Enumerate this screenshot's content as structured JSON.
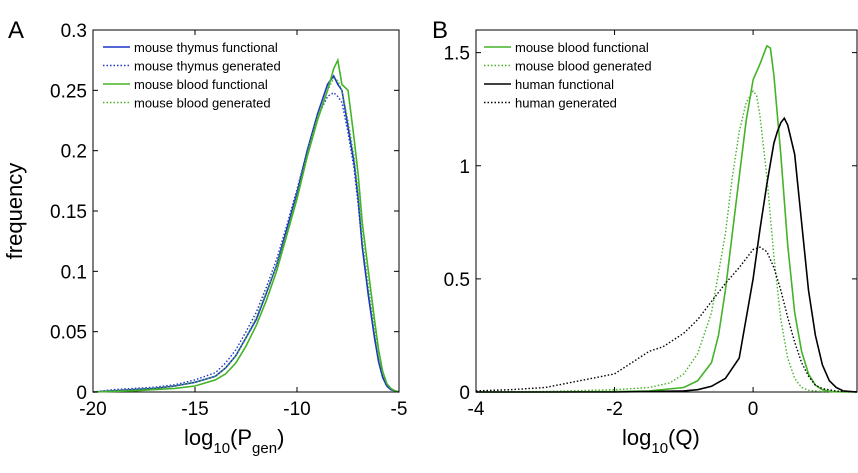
{
  "chart_data": [
    {
      "panel": "A",
      "type": "line",
      "xlabel_main": "log",
      "xlabel_sub": "10",
      "xlabel_arg_open": "(P",
      "xlabel_arg_sub": "gen",
      "xlabel_arg_close": ")",
      "ylabel": "frequency",
      "xlim": [
        -20,
        -5
      ],
      "ylim": [
        0,
        0.3
      ],
      "xticks": [
        -20,
        -15,
        -10,
        -5
      ],
      "xtick_labels": [
        "-20",
        "-15",
        "-10",
        "-5"
      ],
      "yticks": [
        0,
        0.05,
        0.1,
        0.15,
        0.2,
        0.25,
        0.3
      ],
      "ytick_labels": [
        "0",
        "0.05",
        "0.1",
        "0.15",
        "0.2",
        "0.25",
        "0.3"
      ],
      "grid": false,
      "legend_position": "top-left",
      "series": [
        {
          "name": "mouse thymus functional",
          "color": "#1f35c8",
          "dash": "solid",
          "x": [
            -20,
            -19,
            -18,
            -17,
            -16,
            -15,
            -14,
            -13.5,
            -13,
            -12.5,
            -12,
            -11.5,
            -11,
            -10.5,
            -10,
            -9.5,
            -9,
            -8.5,
            -8.2,
            -8,
            -7.8,
            -7.5,
            -7.2,
            -7,
            -6.8,
            -6.5,
            -6.2,
            -6,
            -5.8,
            -5.6,
            -5.4,
            -5.2,
            -5
          ],
          "y": [
            0,
            0.001,
            0.002,
            0.003,
            0.005,
            0.008,
            0.013,
            0.02,
            0.03,
            0.045,
            0.06,
            0.082,
            0.105,
            0.135,
            0.165,
            0.2,
            0.23,
            0.255,
            0.262,
            0.255,
            0.25,
            0.22,
            0.19,
            0.16,
            0.12,
            0.08,
            0.045,
            0.025,
            0.012,
            0.005,
            0.002,
            0.001,
            0
          ]
        },
        {
          "name": "mouse thymus generated",
          "color": "#1f35c8",
          "dash": "dotted",
          "x": [
            -20,
            -19,
            -18,
            -17,
            -16,
            -15,
            -14,
            -13.5,
            -13,
            -12.5,
            -12,
            -11.5,
            -11,
            -10.5,
            -10,
            -9.5,
            -9,
            -8.5,
            -8.2,
            -8,
            -7.8,
            -7.5,
            -7.2,
            -7,
            -6.8,
            -6.5,
            -6.2,
            -6,
            -5.8,
            -5.6,
            -5.4,
            -5.2,
            -5
          ],
          "y": [
            0,
            0.002,
            0.003,
            0.004,
            0.006,
            0.01,
            0.016,
            0.024,
            0.035,
            0.05,
            0.066,
            0.087,
            0.11,
            0.138,
            0.168,
            0.2,
            0.228,
            0.245,
            0.248,
            0.245,
            0.24,
            0.215,
            0.185,
            0.155,
            0.12,
            0.08,
            0.046,
            0.026,
            0.013,
            0.006,
            0.002,
            0.001,
            0
          ]
        },
        {
          "name": "mouse blood functional",
          "color": "#44b327",
          "dash": "solid",
          "x": [
            -20,
            -19,
            -18,
            -17,
            -16,
            -15,
            -14,
            -13.5,
            -13,
            -12.5,
            -12,
            -11.5,
            -11,
            -10.5,
            -10,
            -9.5,
            -9,
            -8.5,
            -8.2,
            -8,
            -7.8,
            -7.5,
            -7.2,
            -7,
            -6.8,
            -6.5,
            -6.2,
            -6,
            -5.8,
            -5.6,
            -5.4,
            -5.2,
            -5
          ],
          "y": [
            0,
            0.0005,
            0.001,
            0.002,
            0.003,
            0.005,
            0.01,
            0.015,
            0.024,
            0.038,
            0.055,
            0.076,
            0.1,
            0.13,
            0.16,
            0.195,
            0.225,
            0.25,
            0.268,
            0.275,
            0.255,
            0.25,
            0.21,
            0.18,
            0.14,
            0.1,
            0.06,
            0.035,
            0.017,
            0.007,
            0.003,
            0.001,
            0
          ]
        },
        {
          "name": "mouse blood generated",
          "color": "#44b327",
          "dash": "dotted",
          "x": [
            -20,
            -19,
            -18,
            -17,
            -16,
            -15,
            -14,
            -13.5,
            -13,
            -12.5,
            -12,
            -11.5,
            -11,
            -10.5,
            -10,
            -9.5,
            -9,
            -8.5,
            -8.2,
            -8,
            -7.8,
            -7.5,
            -7.2,
            -7,
            -6.8,
            -6.5,
            -6.2,
            -6,
            -5.8,
            -5.6,
            -5.4,
            -5.2,
            -5
          ],
          "y": [
            0,
            0.001,
            0.002,
            0.003,
            0.005,
            0.008,
            0.013,
            0.02,
            0.03,
            0.045,
            0.062,
            0.083,
            0.105,
            0.132,
            0.163,
            0.198,
            0.228,
            0.25,
            0.26,
            0.258,
            0.25,
            0.225,
            0.195,
            0.165,
            0.128,
            0.088,
            0.052,
            0.03,
            0.015,
            0.007,
            0.003,
            0.001,
            0
          ]
        }
      ]
    },
    {
      "panel": "B",
      "type": "line",
      "xlabel_main": "log",
      "xlabel_sub": "10",
      "xlabel_arg_open": "(Q)",
      "xlabel_arg_sub": "",
      "xlabel_arg_close": "",
      "ylabel": "",
      "xlim": [
        -4,
        1.5
      ],
      "ylim": [
        0,
        1.6
      ],
      "xticks": [
        -4,
        -2,
        0
      ],
      "xtick_labels": [
        "-4",
        "-2",
        "0"
      ],
      "yticks": [
        0,
        0.5,
        1,
        1.5
      ],
      "ytick_labels": [
        "0",
        "0.5",
        "1",
        "1.5"
      ],
      "grid": false,
      "legend_position": "top-left",
      "series": [
        {
          "name": "mouse blood functional",
          "color": "#44b327",
          "dash": "solid",
          "x": [
            -4,
            -3,
            -2,
            -1.5,
            -1,
            -0.8,
            -0.6,
            -0.5,
            -0.4,
            -0.3,
            -0.2,
            -0.1,
            0,
            0.1,
            0.2,
            0.25,
            0.3,
            0.4,
            0.5,
            0.6,
            0.7,
            0.8,
            0.9,
            1.0,
            1.1,
            1.2,
            1.5
          ],
          "y": [
            0,
            0,
            0.002,
            0.005,
            0.02,
            0.05,
            0.13,
            0.25,
            0.45,
            0.7,
            0.95,
            1.2,
            1.38,
            1.45,
            1.53,
            1.52,
            1.4,
            1.05,
            0.65,
            0.35,
            0.18,
            0.08,
            0.03,
            0.01,
            0.003,
            0.001,
            0
          ]
        },
        {
          "name": "mouse blood generated",
          "color": "#44b327",
          "dash": "dotted",
          "x": [
            -4,
            -3,
            -2,
            -1.5,
            -1.2,
            -1,
            -0.8,
            -0.6,
            -0.4,
            -0.3,
            -0.2,
            -0.1,
            0,
            0.05,
            0.1,
            0.2,
            0.3,
            0.4,
            0.5,
            0.6,
            0.7,
            0.8,
            1.0,
            1.5
          ],
          "y": [
            0,
            0.002,
            0.01,
            0.02,
            0.04,
            0.08,
            0.17,
            0.35,
            0.7,
            0.95,
            1.15,
            1.28,
            1.33,
            1.31,
            1.22,
            0.95,
            0.6,
            0.32,
            0.15,
            0.06,
            0.02,
            0.008,
            0.002,
            0
          ]
        },
        {
          "name": "human functional",
          "color": "#000000",
          "dash": "solid",
          "x": [
            -4,
            -3,
            -2,
            -1.5,
            -1,
            -0.8,
            -0.6,
            -0.4,
            -0.2,
            0,
            0.1,
            0.2,
            0.3,
            0.35,
            0.4,
            0.45,
            0.5,
            0.6,
            0.7,
            0.8,
            0.9,
            1.0,
            1.1,
            1.2,
            1.3,
            1.5
          ],
          "y": [
            0,
            0,
            0,
            0.002,
            0.005,
            0.01,
            0.025,
            0.06,
            0.15,
            0.5,
            0.72,
            0.92,
            1.1,
            1.15,
            1.19,
            1.21,
            1.18,
            1.05,
            0.75,
            0.45,
            0.25,
            0.12,
            0.05,
            0.02,
            0.005,
            0
          ]
        },
        {
          "name": "human generated",
          "color": "#000000",
          "dash": "dotted",
          "x": [
            -4,
            -3.5,
            -3,
            -2.5,
            -2,
            -1.8,
            -1.5,
            -1.3,
            -1,
            -0.8,
            -0.6,
            -0.4,
            -0.2,
            0,
            0.1,
            0.2,
            0.3,
            0.4,
            0.5,
            0.6,
            0.7,
            0.8,
            0.9,
            1.0,
            1.2,
            1.5
          ],
          "y": [
            0.005,
            0.01,
            0.02,
            0.05,
            0.08,
            0.12,
            0.18,
            0.2,
            0.26,
            0.32,
            0.4,
            0.48,
            0.55,
            0.63,
            0.64,
            0.62,
            0.55,
            0.45,
            0.33,
            0.22,
            0.13,
            0.07,
            0.03,
            0.015,
            0.004,
            0
          ]
        }
      ]
    }
  ]
}
